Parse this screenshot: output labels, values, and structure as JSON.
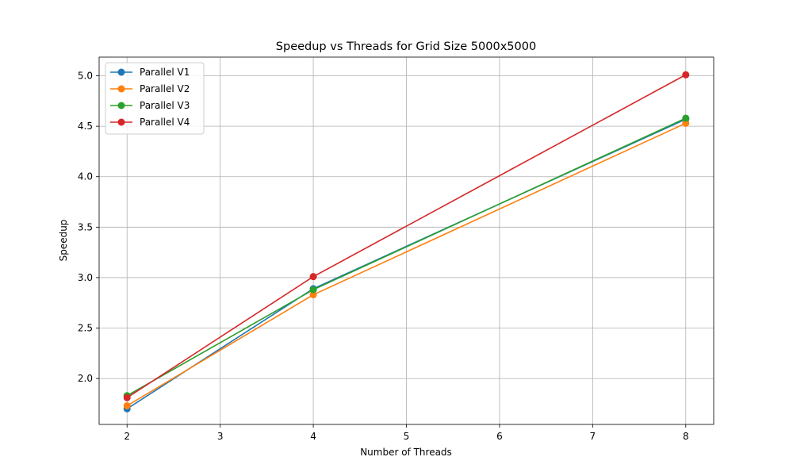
{
  "chart_data": {
    "type": "line",
    "title": "Speedup vs Threads for Grid Size 5000x5000",
    "xlabel": "Number of Threads",
    "ylabel": "Speedup",
    "x": [
      2,
      4,
      8
    ],
    "xlim": [
      1.7,
      8.3
    ],
    "ylim": [
      1.545,
      5.185
    ],
    "xticks": [
      2,
      3,
      4,
      5,
      6,
      7,
      8
    ],
    "yticks": [
      "2.0",
      "2.5",
      "3.0",
      "3.5",
      "4.0",
      "4.5",
      "5.0"
    ],
    "grid": true,
    "legend_position": "top-left",
    "series": [
      {
        "name": "Parallel V1",
        "color": "#1f77b4",
        "values": [
          1.7,
          2.89,
          4.57
        ]
      },
      {
        "name": "Parallel V2",
        "color": "#ff7f0e",
        "values": [
          1.73,
          2.83,
          4.53
        ]
      },
      {
        "name": "Parallel V3",
        "color": "#2ca02c",
        "values": [
          1.83,
          2.88,
          4.58
        ]
      },
      {
        "name": "Parallel V4",
        "color": "#d62728",
        "values": [
          1.81,
          3.01,
          5.01
        ]
      }
    ]
  }
}
